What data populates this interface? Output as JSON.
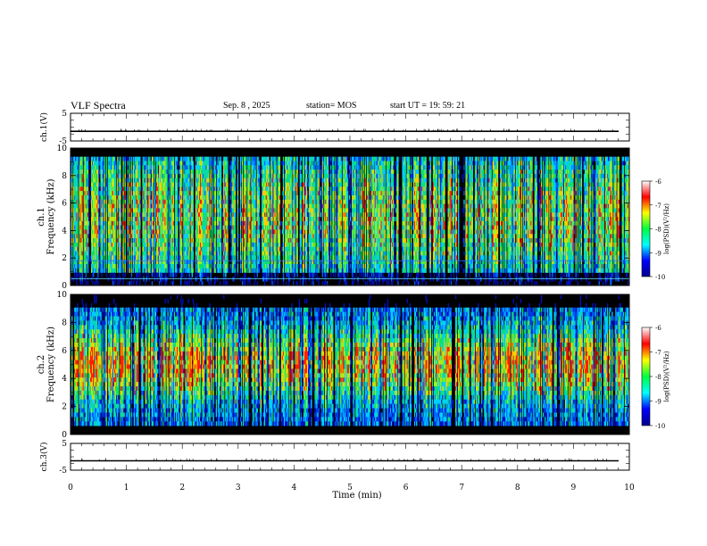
{
  "header": {
    "title": "VLF Spectra",
    "date": "Sep. 8 , 2025",
    "station": "station= MOS",
    "start": "start UT = 19: 59: 21"
  },
  "chart_data": [
    {
      "type": "line",
      "name": "ch1-voltage-trace",
      "ylabel": "ch.1(V)",
      "ylim": [
        -5,
        5
      ],
      "yticks": [
        "5",
        "-5"
      ],
      "x": [
        0,
        10
      ],
      "values": [
        -1.5,
        -1.5
      ]
    },
    {
      "type": "heatmap",
      "name": "ch1-spectrogram",
      "ylabel": "ch.1 Frequency (kHz)",
      "ylim": [
        0,
        10
      ],
      "yticks": [
        "0",
        "2",
        "4",
        "6",
        "8",
        "10"
      ],
      "colorbar": {
        "label": "log(PSD)(V²/Hz)",
        "range": [
          -10,
          -6
        ],
        "ticks": [
          "-10",
          "-9",
          "-8",
          "-7",
          "-6"
        ],
        "colors": [
          "#000090",
          "#0000ff",
          "#00ffff",
          "#00ff40",
          "#ffff00",
          "#ff0000",
          "#ffffff"
        ]
      }
    },
    {
      "type": "heatmap",
      "name": "ch2-spectrogram",
      "ylabel": "ch.2 Frequency (kHz)",
      "ylim": [
        0,
        10
      ],
      "yticks": [
        "0",
        "2",
        "4",
        "6",
        "8",
        "10"
      ],
      "colorbar": {
        "label": "log(PSD)(V²/Hz)",
        "range": [
          -10,
          -6
        ],
        "ticks": [
          "-10",
          "-9",
          "-8",
          "-7",
          "-6"
        ],
        "colors": [
          "#000090",
          "#0000ff",
          "#00ffff",
          "#00ff40",
          "#ffff00",
          "#ff0000",
          "#ffffff"
        ]
      }
    },
    {
      "type": "line",
      "name": "ch3-voltage-trace",
      "ylabel": "ch.3(V)",
      "ylim": [
        -5,
        5
      ],
      "yticks": [
        "5",
        "-5"
      ],
      "xlabel": "Time (min)",
      "xlim": [
        0,
        10
      ],
      "xticks": [
        "0",
        "1",
        "2",
        "3",
        "4",
        "5",
        "6",
        "7",
        "8",
        "9",
        "10"
      ],
      "x": [
        0,
        10
      ],
      "values": [
        -1.5,
        -1.5
      ]
    }
  ]
}
